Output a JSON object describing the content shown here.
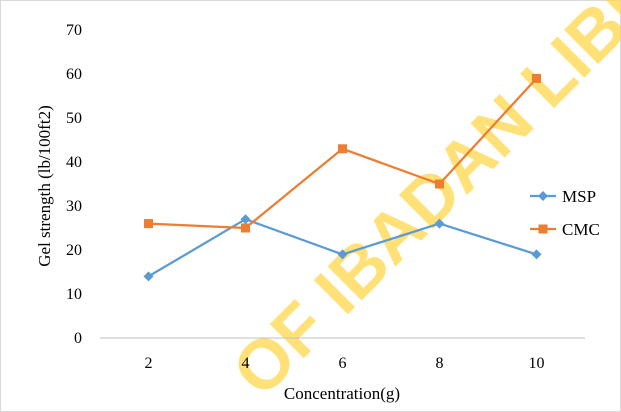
{
  "colors": {
    "MSP": "#5b9bd5",
    "CMC": "#ed7d31",
    "axis": "#bfbfbf",
    "watermark": "#ffd84a"
  },
  "watermark": "OF IBADAN LIBRA",
  "chart_data": {
    "type": "line",
    "title": "",
    "xlabel": "Concentration(g)",
    "ylabel": "Gel strength (lb/100ft2)",
    "categories": [
      "2",
      "4",
      "6",
      "8",
      "10"
    ],
    "ylim": [
      0,
      70
    ],
    "yticks": [
      "0",
      "10",
      "20",
      "30",
      "40",
      "50",
      "60",
      "70"
    ],
    "grid": false,
    "legend_position": "right",
    "series": [
      {
        "name": "MSP",
        "marker": "diamond",
        "values": [
          14,
          27,
          19,
          26,
          19
        ]
      },
      {
        "name": "CMC",
        "marker": "square",
        "values": [
          26,
          25,
          43,
          35,
          59
        ]
      }
    ]
  }
}
